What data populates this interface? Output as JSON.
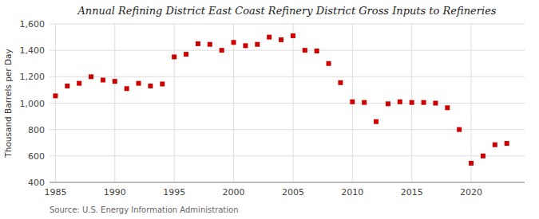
{
  "chart_data": {
    "type": "scatter",
    "title": "Annual Refining District East Coast Refinery District Gross Inputs to Refineries",
    "ylabel": "Thousand Barrels per Day",
    "source": "Source: U.S. Energy Information Administration",
    "color": "#cc0000",
    "marker": "square",
    "grid": true,
    "xlim": [
      1984.5,
      2024.5
    ],
    "ylim": [
      400,
      1600
    ],
    "xticks": [
      1985,
      1990,
      1995,
      2000,
      2005,
      2010,
      2015,
      2020
    ],
    "yticks": [
      400,
      600,
      800,
      {
        "value": 1000,
        "label": "1,000"
      },
      {
        "value": 1200,
        "label": "1,200"
      },
      {
        "value": 1400,
        "label": "1,400"
      },
      {
        "value": 1600,
        "label": "1,600"
      }
    ],
    "x": [
      1985,
      1986,
      1987,
      1988,
      1989,
      1990,
      1991,
      1992,
      1993,
      1994,
      1995,
      1996,
      1997,
      1998,
      1999,
      2000,
      2001,
      2002,
      2003,
      2004,
      2005,
      2006,
      2007,
      2008,
      2009,
      2010,
      2011,
      2012,
      2013,
      2014,
      2015,
      2016,
      2017,
      2018,
      2019,
      2020,
      2021,
      2022,
      2023
    ],
    "values": [
      1055,
      1130,
      1150,
      1200,
      1175,
      1165,
      1110,
      1150,
      1130,
      1145,
      1350,
      1370,
      1450,
      1445,
      1400,
      1460,
      1435,
      1445,
      1500,
      1480,
      1510,
      1400,
      1395,
      1300,
      1155,
      1010,
      1005,
      860,
      995,
      1010,
      1005,
      1005,
      1000,
      965,
      800,
      545,
      600,
      685,
      695
    ]
  }
}
